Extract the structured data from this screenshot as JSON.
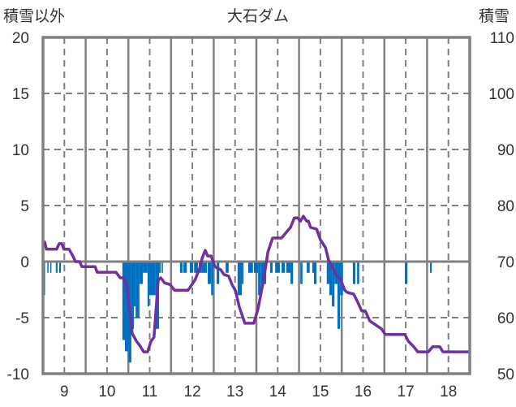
{
  "chart_data": {
    "type": "bar+line",
    "title": "大石ダム",
    "ylabel_left": "積雪以外",
    "ylabel_right": "積雪",
    "xlim": [
      8.5,
      18.5
    ],
    "ylim_left": [
      -10,
      20
    ],
    "ylim_right": [
      50,
      110
    ],
    "x_ticks": [
      "9",
      "10",
      "11",
      "12",
      "13",
      "14",
      "15",
      "16",
      "17",
      "18"
    ],
    "y_left_ticks": [
      "20",
      "15",
      "10",
      "5",
      "0",
      "-5",
      "-10"
    ],
    "y_right_ticks": [
      "110",
      "100",
      "90",
      "80",
      "70",
      "60",
      "50"
    ],
    "grid": true,
    "colors": {
      "bars": "#0070C0",
      "line": "#7030A0",
      "grid": "#808080"
    },
    "series": [
      {
        "name": "積雪以外",
        "type": "bar",
        "axis": "left",
        "segments": [
          [
            8.52,
            8.54,
            -3
          ],
          [
            8.6,
            8.63,
            -1
          ],
          [
            8.67,
            8.69,
            -1
          ],
          [
            8.8,
            8.84,
            -1
          ],
          [
            8.88,
            8.92,
            -1
          ],
          [
            10.36,
            10.42,
            -7
          ],
          [
            10.42,
            10.5,
            -8
          ],
          [
            10.5,
            10.57,
            -9
          ],
          [
            10.57,
            10.63,
            -6
          ],
          [
            10.63,
            10.67,
            -4
          ],
          [
            10.67,
            10.76,
            -5
          ],
          [
            10.76,
            10.84,
            -2
          ],
          [
            10.84,
            10.95,
            -1
          ],
          [
            10.95,
            10.99,
            -4
          ],
          [
            10.99,
            11.14,
            -3
          ],
          [
            11.14,
            11.22,
            -6
          ],
          [
            11.22,
            11.26,
            -1
          ],
          [
            11.28,
            11.31,
            -1
          ],
          [
            11.71,
            11.77,
            -1
          ],
          [
            11.79,
            11.87,
            -1
          ],
          [
            11.94,
            12.02,
            -1
          ],
          [
            12.04,
            12.13,
            -1
          ],
          [
            12.15,
            12.21,
            -1
          ],
          [
            12.21,
            12.34,
            -1
          ],
          [
            12.36,
            12.44,
            -2
          ],
          [
            12.44,
            12.49,
            -3
          ],
          [
            12.57,
            12.63,
            -2
          ],
          [
            12.78,
            12.85,
            -1
          ],
          [
            13.06,
            13.16,
            -3
          ],
          [
            13.16,
            13.2,
            -2
          ],
          [
            13.31,
            13.42,
            -1
          ],
          [
            13.44,
            13.54,
            -1
          ],
          [
            13.54,
            13.61,
            -3
          ],
          [
            13.61,
            13.73,
            -2
          ],
          [
            13.82,
            13.88,
            -1
          ],
          [
            13.94,
            14.05,
            -1
          ],
          [
            14.09,
            14.17,
            -1
          ],
          [
            14.2,
            14.3,
            -1
          ],
          [
            14.3,
            14.36,
            -2
          ],
          [
            14.53,
            14.58,
            -2
          ],
          [
            14.68,
            14.75,
            -1
          ],
          [
            14.81,
            14.85,
            -1
          ],
          [
            14.85,
            14.91,
            -2
          ],
          [
            15.15,
            15.21,
            -2
          ],
          [
            15.21,
            15.27,
            -3
          ],
          [
            15.27,
            15.33,
            -4
          ],
          [
            15.33,
            15.4,
            -2
          ],
          [
            15.4,
            15.46,
            -6
          ],
          [
            15.46,
            15.53,
            -3
          ],
          [
            15.76,
            15.82,
            -2
          ],
          [
            15.86,
            15.91,
            -2
          ],
          [
            16.98,
            17.04,
            -2
          ],
          [
            17.57,
            17.61,
            -1
          ]
        ]
      },
      {
        "name": "積雪",
        "type": "line",
        "axis": "right",
        "x": [
          8.5,
          8.54,
          8.58,
          8.82,
          8.88,
          8.94,
          8.99,
          9.11,
          9.2,
          9.26,
          9.36,
          9.41,
          9.72,
          9.77,
          10.21,
          10.31,
          10.38,
          10.46,
          10.53,
          10.59,
          10.69,
          10.76,
          10.86,
          10.95,
          11.03,
          11.1,
          11.2,
          11.26,
          11.35,
          11.48,
          11.58,
          11.9,
          12.06,
          12.17,
          12.23,
          12.3,
          12.36,
          12.44,
          12.53,
          12.59,
          12.66,
          12.74,
          12.85,
          12.93,
          13.01,
          13.1,
          13.23,
          13.44,
          13.54,
          13.67,
          13.77,
          13.88,
          14.09,
          14.22,
          14.3,
          14.39,
          14.47,
          14.53,
          14.6,
          14.68,
          14.72,
          14.77,
          14.91,
          15.0,
          15.06,
          15.12,
          15.19,
          15.29,
          15.36,
          15.48,
          15.57,
          15.63,
          15.78,
          15.86,
          15.97,
          16.05,
          16.16,
          16.43,
          16.52,
          16.98,
          17.06,
          17.19,
          17.28,
          17.53,
          17.63,
          17.8,
          17.87,
          18.5
        ],
        "y": [
          72.8,
          73.5,
          72.2,
          72.2,
          73.2,
          73.2,
          72.2,
          72.2,
          71.0,
          70.0,
          70.0,
          69.1,
          69.1,
          68.1,
          68.1,
          67.1,
          67.1,
          65.9,
          61.6,
          57.2,
          55.8,
          55.1,
          53.9,
          53.9,
          55.8,
          56.5,
          66.7,
          67.1,
          66.2,
          65.9,
          64.9,
          64.9,
          66.7,
          68.8,
          70.6,
          72.0,
          71.0,
          71.0,
          69.1,
          68.8,
          68.6,
          67.7,
          67.4,
          65.9,
          64.8,
          61.9,
          59.0,
          59.0,
          61.6,
          66.7,
          71.7,
          74.2,
          74.2,
          75.4,
          76.1,
          77.8,
          77.8,
          77.2,
          78.1,
          77.2,
          77.2,
          76.1,
          75.8,
          73.9,
          73.2,
          72.5,
          70.3,
          68.8,
          67.8,
          66.7,
          64.9,
          64.5,
          64.2,
          63.0,
          61.2,
          61.2,
          59.4,
          58.0,
          57.0,
          57.0,
          55.8,
          54.8,
          53.9,
          53.9,
          54.8,
          54.8,
          53.9,
          53.9
        ]
      }
    ]
  }
}
